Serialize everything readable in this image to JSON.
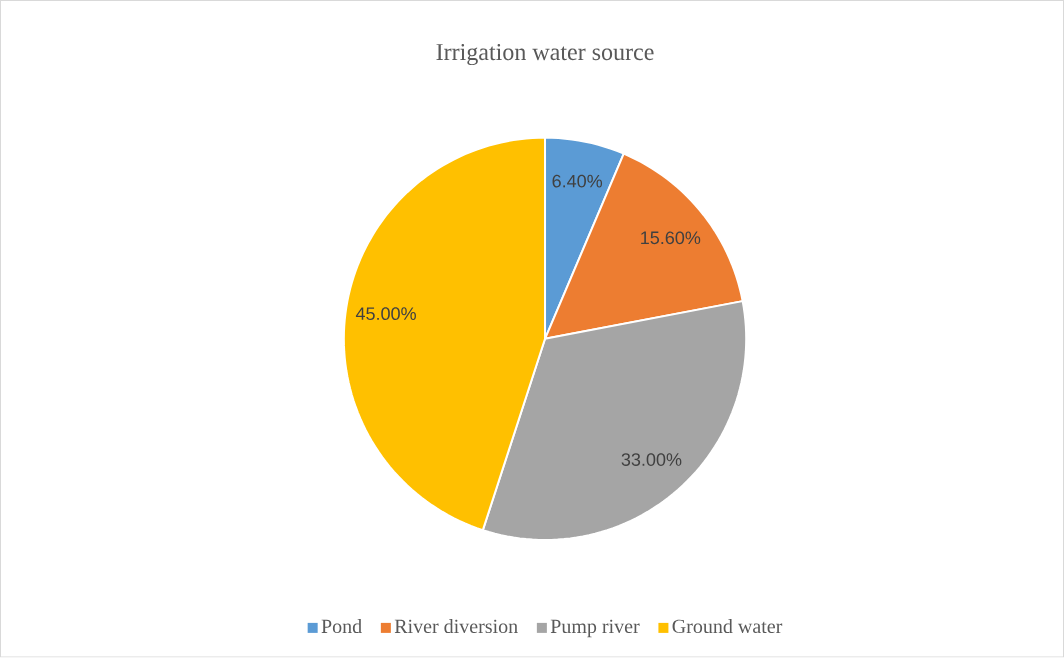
{
  "chart_data": {
    "type": "pie",
    "title": "Irrigation water source",
    "categories": [
      "Pond",
      "River diversion",
      "Pump river",
      "Ground water"
    ],
    "values": [
      6.4,
      15.6,
      33,
      45
    ],
    "colors": [
      "#5b9bd5",
      "#ed7d31",
      "#a5a5a5",
      "#ffc000"
    ],
    "value_labels": [
      "6.40%",
      "15.60%",
      "33.00%",
      "45.00%"
    ],
    "legend": "bottom"
  }
}
